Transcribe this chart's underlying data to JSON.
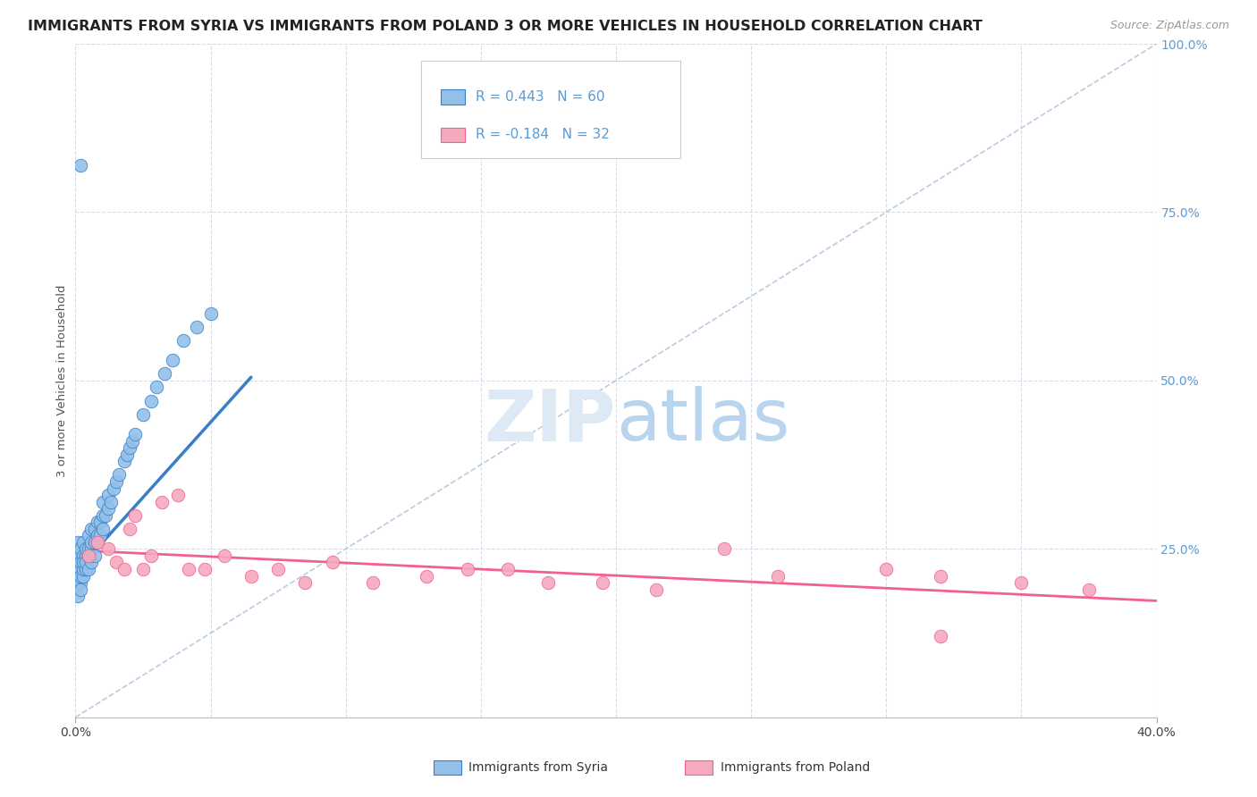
{
  "title": "IMMIGRANTS FROM SYRIA VS IMMIGRANTS FROM POLAND 3 OR MORE VEHICLES IN HOUSEHOLD CORRELATION CHART",
  "source": "Source: ZipAtlas.com",
  "ylabel_label": "3 or more Vehicles in Household",
  "legend_syria": "Immigrants from Syria",
  "legend_poland": "Immigrants from Poland",
  "R_syria": 0.443,
  "N_syria": 60,
  "R_poland": -0.184,
  "N_poland": 32,
  "xmin": 0.0,
  "xmax": 0.4,
  "ymin": 0.0,
  "ymax": 1.0,
  "color_syria": "#92C0E8",
  "color_poland": "#F5AABE",
  "color_syria_line": "#3A7EC6",
  "color_poland_line": "#F06090",
  "color_diagonal": "#A8C0D8",
  "background_color": "#ffffff",
  "grid_color": "#D8DCE8",
  "title_fontsize": 11.5,
  "source_fontsize": 9,
  "watermark_zip": "ZIP",
  "watermark_atlas": "atlas",
  "syria_x": [
    0.001,
    0.001,
    0.001,
    0.001,
    0.001,
    0.002,
    0.002,
    0.002,
    0.002,
    0.002,
    0.002,
    0.003,
    0.003,
    0.003,
    0.003,
    0.003,
    0.004,
    0.004,
    0.004,
    0.004,
    0.005,
    0.005,
    0.005,
    0.005,
    0.006,
    0.006,
    0.006,
    0.006,
    0.007,
    0.007,
    0.007,
    0.008,
    0.008,
    0.008,
    0.009,
    0.009,
    0.01,
    0.01,
    0.01,
    0.011,
    0.012,
    0.012,
    0.013,
    0.014,
    0.015,
    0.016,
    0.018,
    0.019,
    0.02,
    0.021,
    0.022,
    0.025,
    0.028,
    0.03,
    0.033,
    0.036,
    0.04,
    0.045,
    0.05,
    0.002
  ],
  "syria_y": [
    0.2,
    0.22,
    0.24,
    0.26,
    0.18,
    0.2,
    0.22,
    0.23,
    0.25,
    0.21,
    0.19,
    0.21,
    0.22,
    0.24,
    0.23,
    0.26,
    0.22,
    0.24,
    0.25,
    0.23,
    0.22,
    0.24,
    0.25,
    0.27,
    0.23,
    0.25,
    0.26,
    0.28,
    0.24,
    0.26,
    0.28,
    0.26,
    0.27,
    0.29,
    0.27,
    0.29,
    0.28,
    0.3,
    0.32,
    0.3,
    0.31,
    0.33,
    0.32,
    0.34,
    0.35,
    0.36,
    0.38,
    0.39,
    0.4,
    0.41,
    0.42,
    0.45,
    0.47,
    0.49,
    0.51,
    0.53,
    0.56,
    0.58,
    0.6,
    0.82
  ],
  "poland_x": [
    0.005,
    0.008,
    0.012,
    0.015,
    0.018,
    0.02,
    0.022,
    0.025,
    0.028,
    0.032,
    0.038,
    0.042,
    0.048,
    0.055,
    0.065,
    0.075,
    0.085,
    0.095,
    0.11,
    0.13,
    0.145,
    0.16,
    0.175,
    0.195,
    0.215,
    0.24,
    0.26,
    0.3,
    0.32,
    0.35,
    0.375,
    0.32
  ],
  "poland_y": [
    0.24,
    0.26,
    0.25,
    0.23,
    0.22,
    0.28,
    0.3,
    0.22,
    0.24,
    0.32,
    0.33,
    0.22,
    0.22,
    0.24,
    0.21,
    0.22,
    0.2,
    0.23,
    0.2,
    0.21,
    0.22,
    0.22,
    0.2,
    0.2,
    0.19,
    0.25,
    0.21,
    0.22,
    0.21,
    0.2,
    0.19,
    0.12
  ],
  "syria_line_x0": 0.0,
  "syria_line_y0": 0.215,
  "syria_line_x1": 0.065,
  "syria_line_y1": 0.505,
  "poland_line_x0": 0.0,
  "poland_line_y0": 0.248,
  "poland_line_x1": 0.4,
  "poland_line_y1": 0.173
}
